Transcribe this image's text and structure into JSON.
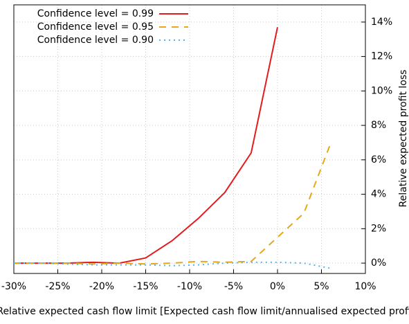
{
  "chart_data": {
    "type": "line",
    "x_label": "Relative expected cash flow limit [Expected cash flow limit/annualised expected profit]",
    "y_label": "Relative expected profit loss",
    "series": [
      {
        "name": "Confidence level = 0.99",
        "color": "#e41a1c",
        "dash": "solid",
        "x": [
          -30,
          -27,
          -24,
          -21,
          -18,
          -15,
          -12,
          -9,
          -6,
          -3,
          0
        ],
        "values": [
          0,
          0,
          0,
          0.05,
          0,
          0.3,
          1.3,
          2.6,
          4.1,
          6.4,
          13.7
        ]
      },
      {
        "name": "Confidence level = 0.95",
        "color": "#e6a817",
        "dash": "dashed",
        "x": [
          -30,
          -27,
          -24,
          -21,
          -18,
          -15,
          -12,
          -9,
          -6,
          -3,
          0,
          3,
          6
        ],
        "values": [
          0,
          0,
          0,
          -0.05,
          0,
          -0.05,
          0,
          0.1,
          0.05,
          0.1,
          1.5,
          2.9,
          6.9
        ]
      },
      {
        "name": "Confidence level = 0.90",
        "color": "#56b4e9",
        "dash": "dotted",
        "x": [
          -30,
          -27,
          -24,
          -21,
          -18,
          -15,
          -12,
          -9,
          -6,
          -3,
          0,
          3,
          6
        ],
        "values": [
          0,
          0,
          -0.05,
          -0.1,
          -0.1,
          -0.1,
          -0.15,
          -0.1,
          0,
          0.05,
          0.05,
          0,
          -0.3
        ]
      }
    ],
    "xlim": [
      -30,
      10
    ],
    "xticks": [
      {
        "value": -30,
        "label": "-30%"
      },
      {
        "value": -25,
        "label": "-25%"
      },
      {
        "value": -20,
        "label": "-20%"
      },
      {
        "value": -15,
        "label": "-15%"
      },
      {
        "value": -10,
        "label": "-10%"
      },
      {
        "value": -5,
        "label": "-5%"
      },
      {
        "value": 0,
        "label": "0%"
      },
      {
        "value": 5,
        "label": "5%"
      },
      {
        "value": 10,
        "label": "10%"
      }
    ],
    "ylim": [
      -0.6,
      15
    ],
    "yticks": [
      {
        "value": 0,
        "label": "0%"
      },
      {
        "value": 2,
        "label": "2%"
      },
      {
        "value": 4,
        "label": "4%"
      },
      {
        "value": 6,
        "label": "6%"
      },
      {
        "value": 8,
        "label": "8%"
      },
      {
        "value": 10,
        "label": "10%"
      },
      {
        "value": 12,
        "label": "12%"
      },
      {
        "value": 14,
        "label": "14%"
      }
    ],
    "grid": true,
    "legend": "upper left"
  }
}
